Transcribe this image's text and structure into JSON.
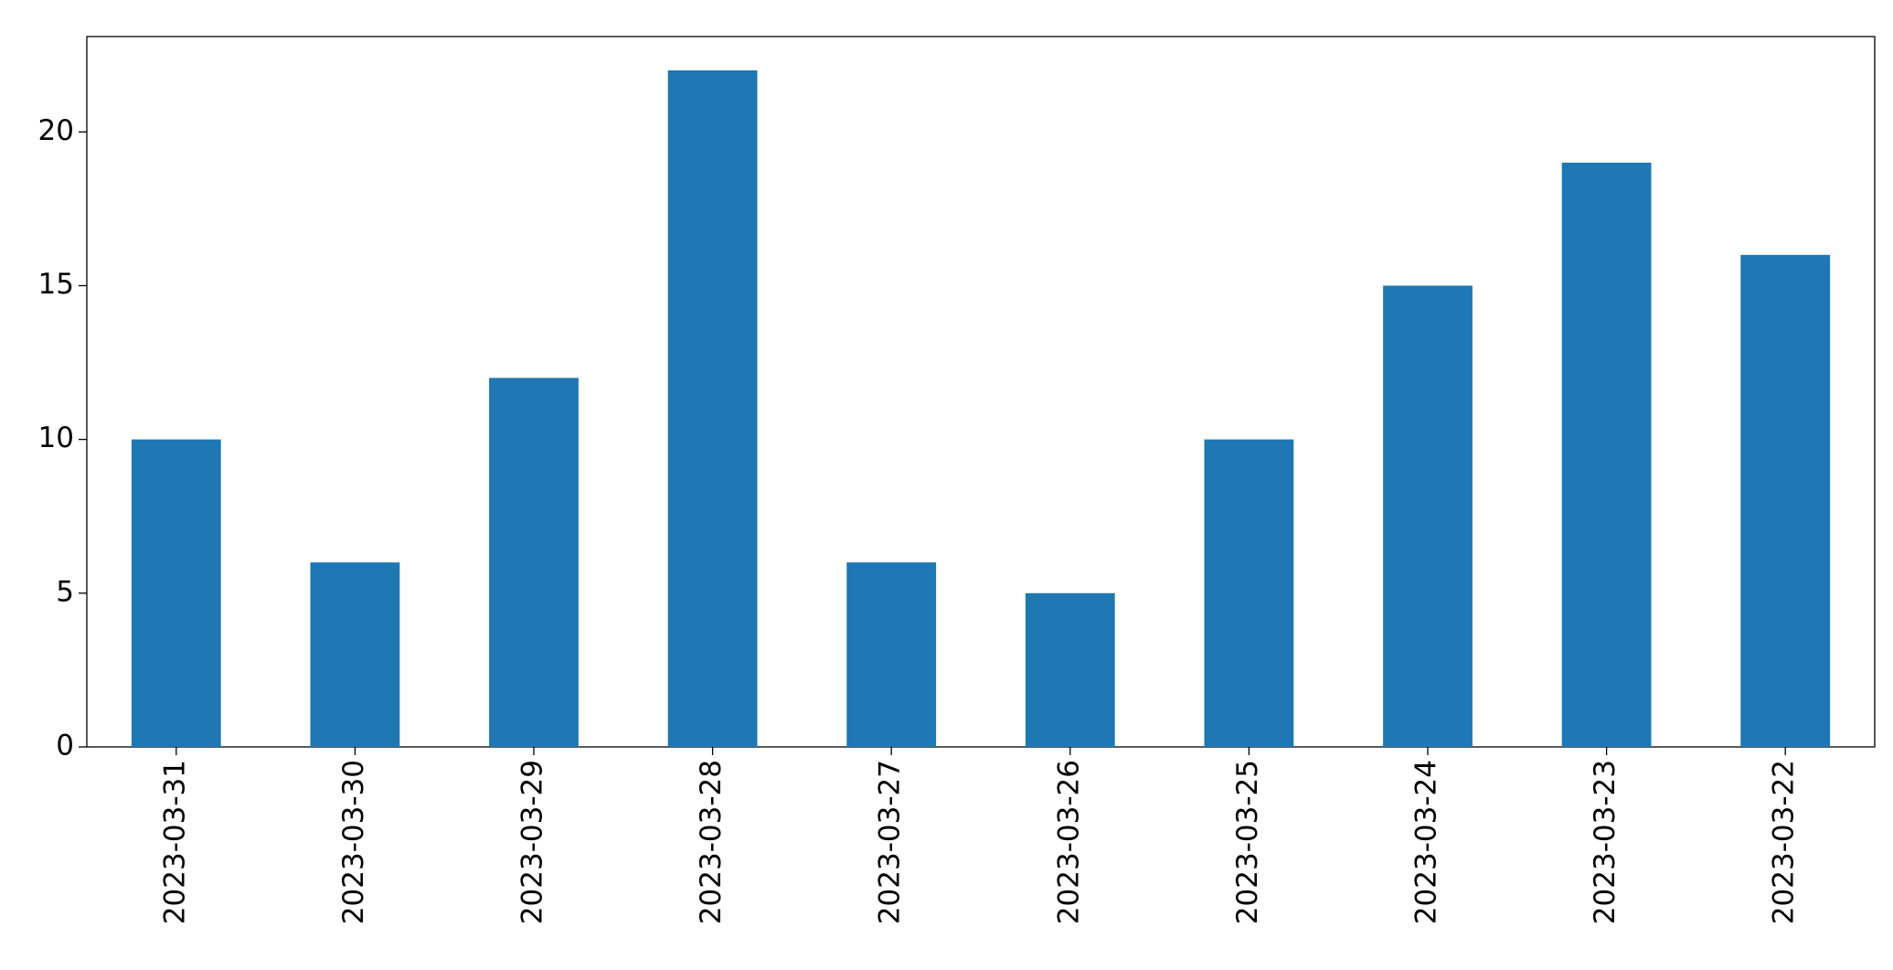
{
  "chart_data": {
    "type": "bar",
    "categories": [
      "2023-03-31",
      "2023-03-30",
      "2023-03-29",
      "2023-03-28",
      "2023-03-27",
      "2023-03-26",
      "2023-03-25",
      "2023-03-24",
      "2023-03-23",
      "2023-03-22"
    ],
    "values": [
      10,
      6,
      12,
      22,
      6,
      5,
      10,
      15,
      19,
      16
    ],
    "color": "#1f77b4",
    "ylim": [
      0,
      23.1
    ],
    "yticks": [
      0,
      5,
      10,
      15,
      20
    ],
    "grid": false
  }
}
